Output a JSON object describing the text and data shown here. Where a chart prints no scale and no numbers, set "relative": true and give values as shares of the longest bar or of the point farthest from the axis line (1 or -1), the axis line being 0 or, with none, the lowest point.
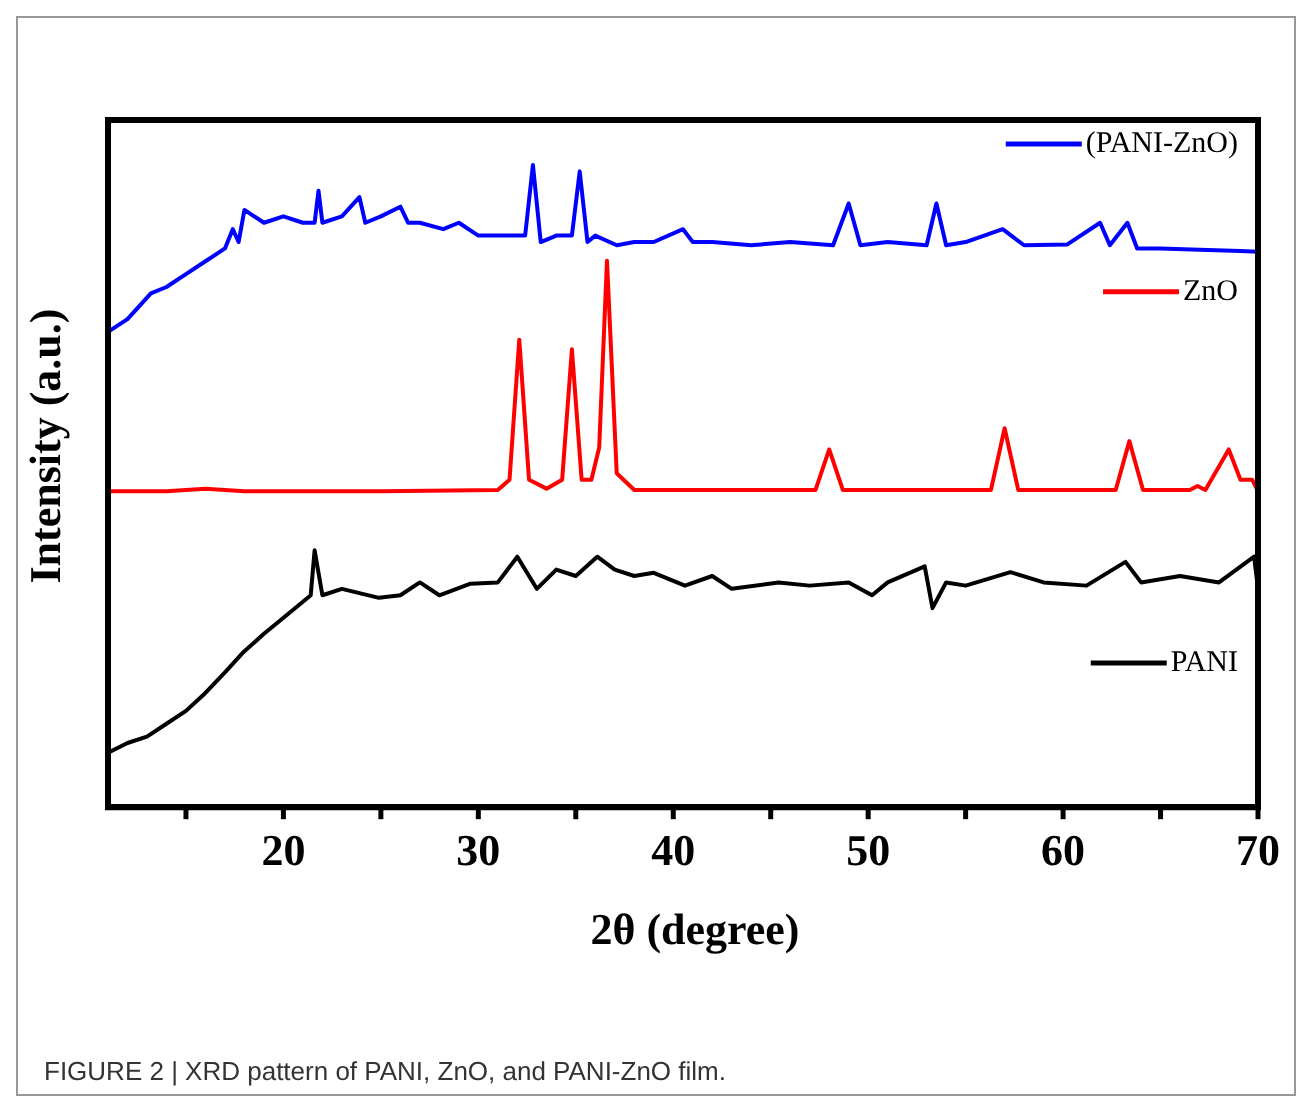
{
  "chart_data": {
    "type": "line",
    "relative": true,
    "xlabel": "2θ (degree)",
    "ylabel": "Intensity (a.u.)",
    "xlim": [
      11,
      70
    ],
    "xticks": [
      {
        "value": 15,
        "label": null
      },
      20,
      {
        "value": 25,
        "label": null
      },
      30,
      {
        "value": 35,
        "label": null
      },
      40,
      {
        "value": 45,
        "label": null
      },
      50,
      {
        "value": 55,
        "label": null
      },
      60,
      {
        "value": 65,
        "label": null
      },
      70
    ],
    "grid": false,
    "legend": "right",
    "marker": "none",
    "line_style": "solid",
    "annotations": [
      "FIGURE 2 | XRD pattern of PANI, ZnO, and PANI-ZnO film."
    ],
    "series": [
      {
        "name": "(PANI-ZnO)",
        "color": "#0000ff",
        "x": [
          11,
          12,
          13.2,
          14,
          15,
          16,
          17,
          17.4,
          17.7,
          18,
          19,
          20,
          21,
          21.6,
          21.8,
          22,
          23,
          23.9,
          24.2,
          25,
          26,
          26.4,
          27,
          28.2,
          29,
          30,
          30.9,
          32.4,
          32.8,
          33.2,
          34,
          34.8,
          35.2,
          35.6,
          36,
          37.1,
          38,
          39,
          40.5,
          41,
          42,
          44,
          46,
          48.2,
          49,
          49.6,
          51,
          53,
          53.5,
          54,
          55,
          56.9,
          58,
          60.2,
          61.9,
          62.4,
          63.3,
          63.8,
          65,
          67,
          69.1,
          70
        ],
        "values": [
          0.74,
          0.76,
          0.8,
          0.81,
          0.83,
          0.85,
          0.87,
          0.9,
          0.88,
          0.93,
          0.91,
          0.92,
          0.91,
          0.91,
          0.96,
          0.91,
          0.92,
          0.95,
          0.91,
          0.92,
          0.935,
          0.91,
          0.91,
          0.9,
          0.91,
          0.89,
          0.89,
          0.89,
          1,
          0.88,
          0.89,
          0.89,
          0.99,
          0.88,
          0.89,
          0.875,
          0.88,
          0.88,
          0.9,
          0.88,
          0.88,
          0.875,
          0.88,
          0.875,
          0.94,
          0.875,
          0.88,
          0.875,
          0.94,
          0.875,
          0.88,
          0.9,
          0.875,
          0.876,
          0.91,
          0.875,
          0.91,
          0.87,
          0.87,
          0.868,
          0.866,
          0.865
        ]
      },
      {
        "name": "ZnO",
        "color": "#ff0000",
        "x": [
          11,
          14,
          16,
          18,
          25,
          31,
          31.6,
          32.1,
          32.6,
          33.5,
          34.3,
          34.8,
          35.3,
          35.8,
          36.2,
          36.6,
          37.1,
          38,
          47.3,
          48,
          48.7,
          56.3,
          57,
          57.7,
          62.7,
          63.4,
          64.1,
          66.5,
          66.9,
          67.3,
          68.5,
          69.1,
          69.7,
          70
        ],
        "values": [
          0.492,
          0.492,
          0.496,
          0.492,
          0.492,
          0.494,
          0.51,
          0.728,
          0.51,
          0.496,
          0.51,
          0.713,
          0.51,
          0.51,
          0.56,
          0.851,
          0.52,
          0.494,
          0.494,
          0.557,
          0.494,
          0.494,
          0.59,
          0.494,
          0.494,
          0.57,
          0.494,
          0.494,
          0.5,
          0.494,
          0.557,
          0.51,
          0.51,
          0.492
        ]
      },
      {
        "name": "PANI",
        "color": "#000000",
        "x": [
          11,
          12,
          13,
          14,
          15,
          15.9,
          17,
          17.9,
          19,
          19.8,
          21,
          21.4,
          21.6,
          22,
          23,
          24.9,
          26,
          27,
          28,
          29.6,
          31,
          32,
          33,
          34,
          35,
          36.1,
          37,
          38,
          39,
          40.6,
          42,
          43,
          45.4,
          47,
          49,
          50.2,
          51,
          52.9,
          53.3,
          54,
          55,
          57.3,
          59,
          61.2,
          63.2,
          64,
          66,
          68,
          69.8,
          70
        ],
        "values": [
          0.085,
          0.1,
          0.11,
          0.13,
          0.15,
          0.175,
          0.21,
          0.24,
          0.27,
          0.29,
          0.32,
          0.33,
          0.4,
          0.33,
          0.34,
          0.326,
          0.33,
          0.35,
          0.33,
          0.348,
          0.35,
          0.39,
          0.34,
          0.37,
          0.36,
          0.39,
          0.37,
          0.36,
          0.365,
          0.345,
          0.36,
          0.34,
          0.35,
          0.345,
          0.35,
          0.33,
          0.35,
          0.375,
          0.31,
          0.35,
          0.345,
          0.366,
          0.35,
          0.345,
          0.382,
          0.35,
          0.36,
          0.35,
          0.39,
          0.34
        ]
      }
    ]
  }
}
